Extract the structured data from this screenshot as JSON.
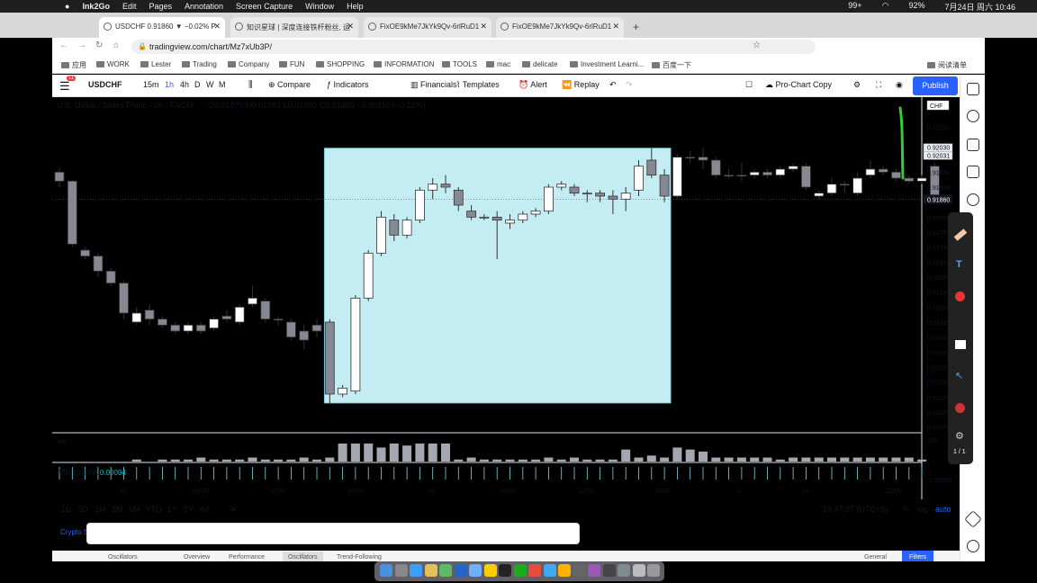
{
  "menubar": {
    "apple": "",
    "items": [
      "Ink2Go",
      "Edit",
      "Pages",
      "Annotation",
      "Screen Capture",
      "Window",
      "Help"
    ],
    "status": "99+",
    "battery": "92%",
    "clock": "7月24日 周六 10:46"
  },
  "tabs": [
    {
      "label": "USDCHF 0.91860 ▼ −0.02% P"
    },
    {
      "label": "知识星球 | 深度连接铁杆粉丝, 运"
    },
    {
      "label": "FixOE9kMe7JkYk9Qv-6rlRuD1"
    },
    {
      "label": "FixOE9kMe7JkYk9Qv-6rlRuD1"
    }
  ],
  "url": "tradingview.com/chart/Mz7xUb3P/",
  "bookmarks": [
    "应用",
    "WORK",
    "Lester",
    "Trading",
    "Company",
    "FUN",
    "SHOPPING",
    "INFORMATION",
    "TOOLS",
    "mac",
    "delicate",
    "Investment Learni...",
    "百度一下",
    "阅读清单"
  ],
  "toolbar": {
    "symbol": "USDCHF",
    "intervals": [
      "15m",
      "1h",
      "4h",
      "D",
      "W",
      "M"
    ],
    "compare": "Compare",
    "indicators": "Indicators",
    "financials": "Financials",
    "templates": "Templates",
    "alert": "Alert",
    "replay": "Replay",
    "layout": "Pro-Chart Copy",
    "publish": "Publish",
    "notif": "11"
  },
  "legend": {
    "name": "U.S. Dollar / Swiss Franc · 1h · FXCM",
    "ohlc": "O0.91970 H0.91981 L0.91860 C0.91860 −0.00110 (−0.12%)"
  },
  "chart_data": {
    "type": "candlestick",
    "series": [
      {
        "name": "USDCHF",
        "ohlc": [
          [
            0.9195,
            0.9192,
            0.91965,
            0.919
          ],
          [
            0.9192,
            0.9171,
            0.91925,
            0.917
          ],
          [
            0.9169,
            0.9167,
            0.917,
            0.9166
          ],
          [
            0.9167,
            0.9162,
            0.9168,
            0.916
          ],
          [
            0.9162,
            0.9158,
            0.9163,
            0.9157
          ],
          [
            0.9158,
            0.9148,
            0.9159,
            0.9146
          ],
          [
            0.9145,
            0.9148,
            0.915,
            0.9144
          ],
          [
            0.9149,
            0.9146,
            0.9151,
            0.9144
          ],
          [
            0.9146,
            0.9144,
            0.9147,
            0.9143
          ],
          [
            0.9144,
            0.9142,
            0.9145,
            0.9141
          ],
          [
            0.9142,
            0.9144,
            0.9145,
            0.9141
          ],
          [
            0.9144,
            0.9142,
            0.9145,
            0.9141
          ],
          [
            0.9143,
            0.9146,
            0.9147,
            0.9142
          ],
          [
            0.9147,
            0.9146,
            0.9149,
            0.9145
          ],
          [
            0.9145,
            0.915,
            0.9151,
            0.9144
          ],
          [
            0.9151,
            0.9153,
            0.9157,
            0.915
          ],
          [
            0.9152,
            0.9146,
            0.9153,
            0.9145
          ],
          [
            0.9146,
            0.9146,
            0.9147,
            0.9144
          ],
          [
            0.9145,
            0.914,
            0.9146,
            0.9139
          ],
          [
            0.9142,
            0.9139,
            0.9144,
            0.9136
          ],
          [
            0.9144,
            0.9142,
            0.9146,
            0.914
          ],
          [
            0.9145,
            0.9121,
            0.9146,
            0.9118
          ],
          [
            0.9121,
            0.9123,
            0.9124,
            0.912
          ],
          [
            0.9122,
            0.9153,
            0.9154,
            0.9121
          ],
          [
            0.9153,
            0.9168,
            0.9169,
            0.9152
          ],
          [
            0.9168,
            0.918,
            0.9182,
            0.9167
          ],
          [
            0.9179,
            0.9174,
            0.9181,
            0.9172
          ],
          [
            0.9174,
            0.9179,
            0.918,
            0.9173
          ],
          [
            0.9179,
            0.9189,
            0.919,
            0.9178
          ],
          [
            0.9189,
            0.9191,
            0.9193,
            0.9186
          ],
          [
            0.9191,
            0.919,
            0.9194,
            0.9188
          ],
          [
            0.9189,
            0.9184,
            0.919,
            0.9182
          ],
          [
            0.9182,
            0.918,
            0.9184,
            0.9179
          ],
          [
            0.918,
            0.918,
            0.9181,
            0.9179
          ],
          [
            0.918,
            0.9179,
            0.9182,
            0.9166
          ],
          [
            0.9178,
            0.9179,
            0.9181,
            0.9176
          ],
          [
            0.9179,
            0.9181,
            0.9182,
            0.9178
          ],
          [
            0.9181,
            0.9182,
            0.9183,
            0.918
          ],
          [
            0.9182,
            0.919,
            0.9191,
            0.9181
          ],
          [
            0.919,
            0.9191,
            0.9192,
            0.9189
          ],
          [
            0.919,
            0.9188,
            0.9191,
            0.9187
          ],
          [
            0.9188,
            0.9188,
            0.9189,
            0.9185
          ],
          [
            0.9188,
            0.9187,
            0.9189,
            0.9185
          ],
          [
            0.9187,
            0.9186,
            0.9189,
            0.9181
          ],
          [
            0.9186,
            0.9188,
            0.919,
            0.9182
          ],
          [
            0.9189,
            0.9197,
            0.9199,
            0.9187
          ],
          [
            0.9199,
            0.9194,
            0.9203,
            0.9193
          ],
          [
            0.9194,
            0.9187,
            0.9196,
            0.9185
          ],
          [
            0.9187,
            0.92,
            0.9201,
            0.9186
          ],
          [
            0.92,
            0.92,
            0.9202,
            0.9198
          ],
          [
            0.92,
            0.9199,
            0.9203,
            0.9196
          ],
          [
            0.9199,
            0.9194,
            0.92,
            0.9193
          ],
          [
            0.9194,
            0.9194,
            0.9196,
            0.9193
          ],
          [
            0.9194,
            0.9194,
            0.9198,
            0.9192
          ],
          [
            0.9194,
            0.9195,
            0.9196,
            0.9193
          ],
          [
            0.9195,
            0.9194,
            0.9196,
            0.9193
          ],
          [
            0.9194,
            0.9196,
            0.9197,
            0.9193
          ],
          [
            0.9196,
            0.9197,
            0.9198,
            0.9195
          ],
          [
            0.9197,
            0.919,
            0.9198,
            0.9189
          ],
          [
            0.9187,
            0.9188,
            0.9189,
            0.9186
          ],
          [
            0.9188,
            0.9191,
            0.9193,
            0.9187
          ],
          [
            0.9191,
            0.9191,
            0.9192,
            0.9188
          ],
          [
            0.9188,
            0.9193,
            0.9195,
            0.9187
          ],
          [
            0.9194,
            0.9196,
            0.9199,
            0.9193
          ],
          [
            0.9196,
            0.9195,
            0.9197,
            0.9194
          ],
          [
            0.9195,
            0.9193,
            0.9196,
            0.9192
          ],
          [
            0.9193,
            0.9192,
            0.9194,
            0.9191
          ],
          [
            0.9192,
            0.9193,
            0.9194,
            0.9191
          ],
          [
            0.9197,
            0.9186,
            0.91981,
            0.9186
          ]
        ]
      }
    ],
    "price_axis": [
      "0.92100",
      "0.92050",
      "0.92000",
      "0.91950",
      "0.91900",
      "0.91850",
      "0.91800",
      "0.91750",
      "0.91700",
      "0.91650",
      "0.91600",
      "0.91550",
      "0.91500",
      "0.91450",
      "0.91400",
      "0.91350",
      "0.91300",
      "0.91250",
      "0.91200",
      "0.91150",
      "0.91100"
    ],
    "ylim": [
      0.9109,
      0.9214
    ],
    "time_axis": [
      "15",
      "06:00",
      "12:00",
      "18:00",
      "16",
      "06:00",
      "12:00",
      "18:00",
      "17",
      "19",
      "12:00"
    ],
    "last_price": "0.91860",
    "tags": [
      "0.92030",
      "0.92031"
    ],
    "currency": "CHF",
    "highlight": {
      "from_bar": 21,
      "to_bar": 47,
      "top": 0.9203,
      "bottom": 0.9118,
      "color": "#c4ecf3"
    },
    "volume": [
      0,
      0,
      0,
      0,
      0,
      0,
      1,
      0,
      1,
      1,
      1,
      2,
      1,
      1,
      1,
      2,
      1,
      1,
      1,
      2,
      1,
      2,
      9,
      9,
      9,
      7,
      9,
      8,
      9,
      9,
      9,
      1,
      2,
      1,
      1,
      1,
      1,
      1,
      2,
      1,
      2,
      1,
      1,
      1,
      6,
      2,
      3,
      2,
      7,
      6,
      5,
      2,
      2,
      2,
      2,
      2,
      1,
      2,
      2,
      2,
      2,
      2,
      2,
      2,
      2,
      2,
      2,
      1,
      0
    ],
    "volume_label": "10K"
  },
  "pane": {
    "vol_label": "Vol",
    "atr_label": "ATR 20 SMA",
    "atr_value": "0.00094",
    "atr_axis": "0.00000"
  },
  "bottom": {
    "ranges": [
      "1D",
      "5D",
      "1M",
      "3M",
      "6M",
      "YTD",
      "1Y",
      "5Y",
      "All"
    ],
    "clock": "10:47:27 (UTC+8)",
    "pct": "%",
    "log": "log",
    "auto": "auto"
  },
  "lowerstrip": {
    "crypto": "Crypto S",
    "oscillators": "Oscillators",
    "overview": "Overview",
    "performance": "Performance",
    "oscillators2": "Oscillators",
    "trend": "Trend-Following",
    "general": "General",
    "filters": "Filters"
  },
  "ink": {
    "page": "1 / 1"
  }
}
